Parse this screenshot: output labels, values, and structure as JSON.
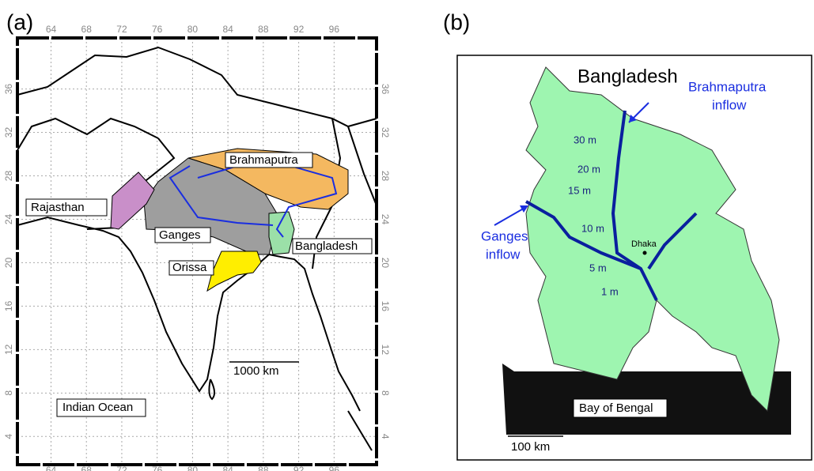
{
  "panels": [
    {
      "label": "(a)",
      "lon_ticks": [
        64,
        68,
        72,
        76,
        80,
        84,
        88,
        92,
        96
      ],
      "lat_ticks": [
        36,
        32,
        28,
        24,
        20,
        16,
        12,
        8,
        4
      ],
      "lon_lim": [
        60.2,
        100.8
      ],
      "lat_lim": [
        1.4,
        40.7
      ],
      "labels": {
        "brahmaputra": "Brahmaputra",
        "rajasthan": "Rajasthan",
        "ganges": "Ganges",
        "bangladesh": "Bangladesh",
        "orissa": "Orissa",
        "ocean": "Indian Ocean"
      },
      "scale_bar": "1000 km"
    },
    {
      "label": "(b)",
      "title": "Bangladesh",
      "brahmaputra_inflow": [
        "Brahmaputra",
        "inflow"
      ],
      "ganges_inflow": [
        "Ganges",
        "inflow"
      ],
      "contours": [
        "30 m",
        "20 m",
        "15 m",
        "10 m",
        "5 m",
        "1 m"
      ],
      "city": "Dhaka",
      "sea": "Bay of Bengal",
      "scale_bar": "100 km"
    }
  ]
}
